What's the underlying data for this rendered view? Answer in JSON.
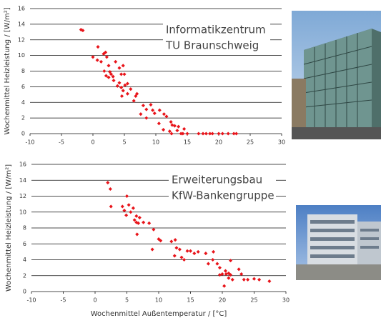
{
  "chart_data": [
    {
      "type": "scatter",
      "ylabel": "Wochenmittel Heizleistung / [W/m²]",
      "annotation": [
        "Informatikzentrum",
        "TU Braunschweig"
      ],
      "color": "#e8141a",
      "grid": true,
      "xlim": [
        -10,
        30
      ],
      "xticks": [
        -10,
        -5,
        0,
        5,
        10,
        15,
        20,
        25,
        30
      ],
      "ylim": [
        0,
        16
      ],
      "yticks": [
        0,
        2,
        4,
        6,
        8,
        10,
        12,
        14,
        16
      ],
      "x": [
        -1.9,
        -1.6,
        0.8,
        1.7,
        2.0,
        2.2,
        0,
        0.7,
        1.3,
        2.5,
        3.6,
        4.2,
        4.8,
        1.8,
        2.7,
        3.2,
        2.9,
        2.1,
        2.5,
        4.5,
        5.0,
        3.3,
        4.2,
        5.5,
        3.9,
        4.5,
        5.1,
        6.0,
        4.8,
        5.5,
        4.6,
        6.8,
        7.0,
        6.5,
        8.0,
        8.5,
        9.2,
        9.5,
        7.6,
        9.8,
        10.6,
        11.3,
        8.5,
        11.7,
        12.4,
        10.5,
        12.6,
        13.0,
        13.6,
        11.2,
        12.2,
        13.4,
        14.5,
        14.3,
        15.0,
        16.8,
        17.5,
        18.0,
        18.6,
        19.0,
        20.0,
        20.6,
        21.5,
        22.4,
        22.8,
        14.0,
        12.5
      ],
      "y": [
        13.3,
        13.2,
        11.1,
        10.2,
        10.4,
        9.8,
        9.8,
        9.4,
        9.2,
        8.7,
        9.2,
        8.4,
        8.7,
        8.0,
        7.9,
        7.3,
        7.6,
        7.4,
        7.2,
        7.6,
        7.6,
        6.8,
        6.5,
        6.4,
        6.1,
        5.9,
        6.2,
        5.7,
        5.5,
        5.1,
        4.8,
        4.8,
        5.1,
        4.2,
        3.6,
        3.1,
        3.7,
        3.0,
        2.5,
        2.6,
        3.0,
        2.5,
        2.0,
        2.2,
        1.5,
        1.3,
        1.1,
        1.0,
        0.9,
        0.5,
        0.3,
        0.4,
        0.6,
        0,
        0,
        0,
        0,
        0,
        0,
        0,
        0,
        0,
        0,
        0,
        0,
        0,
        0
      ]
    },
    {
      "type": "scatter",
      "ylabel": "Wochenmittel Heizleistung / [W/m²]",
      "xlabel": "Wochenmittel Außentemperatur / [°C]",
      "annotation": [
        "Erweiterungsbau",
        "KfW-Bankengruppe"
      ],
      "color": "#e8141a",
      "grid": true,
      "xlim": [
        -10,
        30
      ],
      "xticks": [
        -10,
        -5,
        0,
        5,
        10,
        15,
        20,
        25,
        30
      ],
      "ylim": [
        0,
        16
      ],
      "yticks": [
        0,
        2,
        4,
        6,
        8,
        10,
        12,
        14,
        16
      ],
      "x": [
        2.0,
        2.4,
        5.0,
        2.5,
        4.3,
        5.3,
        4.6,
        5.6,
        6.0,
        4.9,
        6.5,
        6.2,
        7.0,
        6.5,
        6.8,
        8.5,
        7.6,
        6.6,
        9.2,
        10.0,
        10.3,
        12.0,
        12.6,
        9.0,
        12.8,
        13.3,
        12.5,
        13.6,
        14.5,
        15.0,
        15.6,
        14.0,
        16.2,
        17.4,
        18.6,
        17.8,
        18.5,
        19.2,
        19.6,
        21.3,
        20.5,
        20.0,
        20.6,
        21.3,
        21.0,
        22.6,
        23.0,
        21.6,
        23.4,
        24.0,
        25.0,
        25.8,
        27.4,
        19.6,
        20.3,
        21.0
      ],
      "y": [
        13.7,
        12.9,
        12.0,
        10.7,
        10.7,
        10.9,
        10.2,
        10.0,
        10.5,
        9.6,
        9.5,
        9.0,
        9.3,
        8.7,
        8.6,
        8.6,
        8.7,
        7.2,
        7.8,
        6.6,
        6.4,
        6.3,
        6.5,
        5.3,
        5.5,
        5.3,
        4.5,
        4.3,
        5.1,
        5.1,
        4.8,
        4.0,
        5.0,
        4.8,
        5.0,
        3.5,
        4.0,
        3.5,
        3.0,
        3.9,
        2.6,
        2.2,
        2.2,
        2.1,
        2.3,
        2.8,
        2.2,
        1.5,
        1.5,
        1.5,
        1.6,
        1.5,
        1.3,
        2.1,
        0.7,
        1.7
      ]
    }
  ]
}
